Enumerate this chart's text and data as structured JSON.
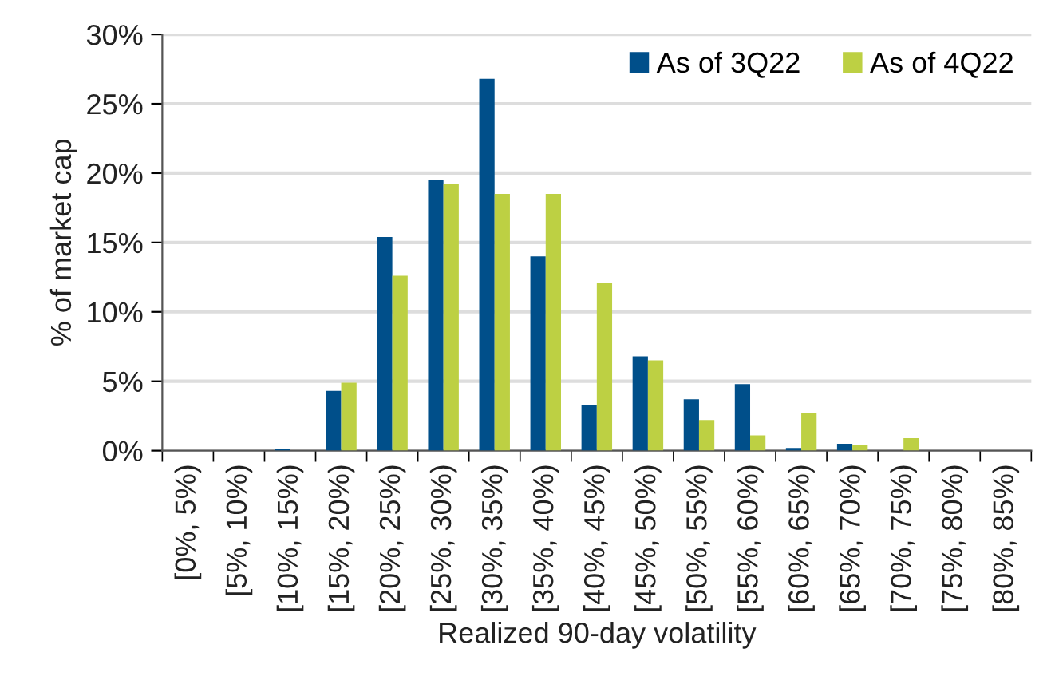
{
  "chart_data": {
    "type": "bar",
    "xlabel": "Realized 90-day volatility",
    "ylabel": "% of market cap",
    "categories": [
      "[0%, 5%)",
      "[5%, 10%)",
      "[10%, 15%)",
      "[15%, 20%)",
      "[20%, 25%)",
      "[25%, 30%)",
      "[30%, 35%)",
      "[35%, 40%)",
      "[40%, 45%)",
      "[45%, 50%)",
      "[50%, 55%)",
      "[55%, 60%)",
      "[60%, 65%)",
      "[65%, 70%)",
      "[70%, 75%)",
      "[75%, 80%)",
      "[80%, 85%)"
    ],
    "series": [
      {
        "name": "As of 3Q22",
        "color": "#004f8a",
        "values": [
          0,
          0,
          0.1,
          4.3,
          15.4,
          19.5,
          26.8,
          14.0,
          3.3,
          6.8,
          3.7,
          4.8,
          0.2,
          0.5,
          0,
          0,
          0
        ]
      },
      {
        "name": "As of 4Q22",
        "color": "#bdd043",
        "values": [
          0,
          0,
          0,
          4.9,
          12.6,
          19.2,
          18.5,
          18.5,
          12.1,
          6.5,
          2.2,
          1.1,
          2.7,
          0.4,
          0.9,
          0,
          0
        ]
      }
    ],
    "ylim": [
      0,
      30
    ],
    "yticks": [
      {
        "value": 0,
        "label": "0%"
      },
      {
        "value": 5,
        "label": "5%"
      },
      {
        "value": 10,
        "label": "10%"
      },
      {
        "value": 15,
        "label": "15%"
      },
      {
        "value": 20,
        "label": "20%"
      },
      {
        "value": 25,
        "label": "25%"
      },
      {
        "value": 30,
        "label": "30%"
      }
    ],
    "grid": "y",
    "legend": "top right"
  }
}
